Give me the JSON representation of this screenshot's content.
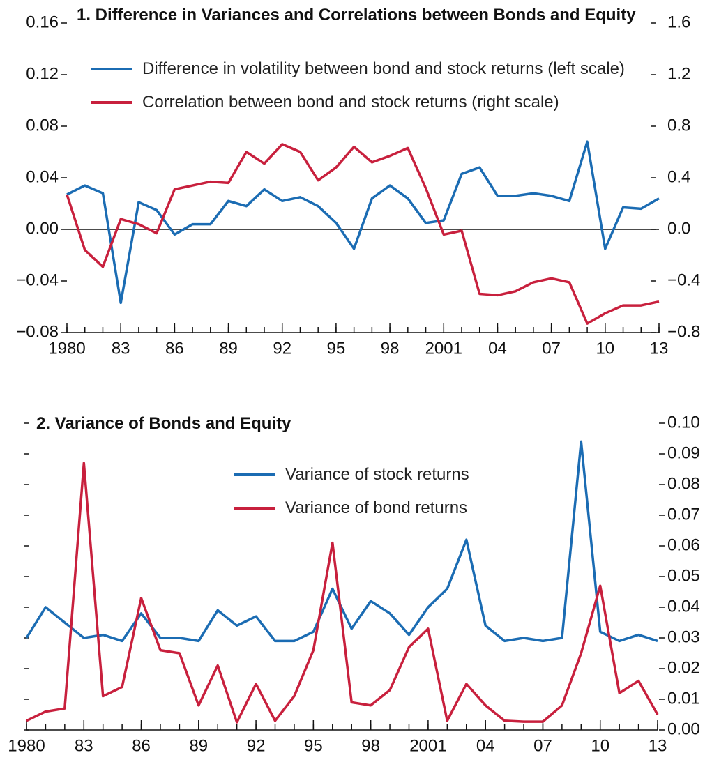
{
  "chart_data": [
    {
      "type": "line",
      "title": "1. Difference in Variances and Correlations between Bonds and Equity",
      "x": [
        1980,
        1981,
        1982,
        1983,
        1984,
        1985,
        1986,
        1987,
        1988,
        1989,
        1990,
        1991,
        1992,
        1993,
        1994,
        1995,
        1996,
        1997,
        1998,
        1999,
        2000,
        2001,
        2002,
        2003,
        2004,
        2005,
        2006,
        2007,
        2008,
        2009,
        2010,
        2011,
        2012,
        2013
      ],
      "series": [
        {
          "name": "Difference in volatility between bond and stock returns (left scale)",
          "color": "#1b6cb3",
          "axis": "y",
          "values": [
            0.027,
            0.034,
            0.028,
            -0.057,
            0.021,
            0.015,
            -0.004,
            0.004,
            0.004,
            0.022,
            0.018,
            0.031,
            0.022,
            0.025,
            0.018,
            0.005,
            -0.015,
            0.024,
            0.034,
            0.024,
            0.005,
            0.007,
            0.043,
            0.048,
            0.026,
            0.026,
            0.028,
            0.026,
            0.022,
            0.068,
            -0.015,
            0.017,
            0.016,
            0.024
          ]
        },
        {
          "name": "Correlation between bond and stock returns (right scale)",
          "color": "#c8203d",
          "axis": "y2",
          "values": [
            0.27,
            -0.16,
            -0.29,
            0.08,
            0.04,
            -0.03,
            0.31,
            0.34,
            0.37,
            0.36,
            0.6,
            0.51,
            0.66,
            0.6,
            0.38,
            0.48,
            0.64,
            0.52,
            0.57,
            0.63,
            0.32,
            -0.04,
            -0.01,
            -0.5,
            -0.51,
            -0.48,
            -0.41,
            -0.38,
            -0.41,
            -0.73,
            -0.65,
            -0.59,
            -0.59,
            -0.56
          ]
        }
      ],
      "xlim": [
        1980,
        2013
      ],
      "xticks": [
        1980,
        {
          "value": 1983,
          "label": "83"
        },
        {
          "value": 1986,
          "label": "86"
        },
        {
          "value": 1989,
          "label": "89"
        },
        {
          "value": 1992,
          "label": "92"
        },
        {
          "value": 1995,
          "label": "95"
        },
        {
          "value": 1998,
          "label": "98"
        },
        2001,
        {
          "value": 2004,
          "label": "04"
        },
        {
          "value": 2007,
          "label": "07"
        },
        {
          "value": 2010,
          "label": "10"
        },
        {
          "value": 2013,
          "label": "13"
        }
      ],
      "ylim": [
        -0.08,
        0.16
      ],
      "yticks": [
        {
          "value": -0.08,
          "label": "−0.08"
        },
        {
          "value": -0.04,
          "label": "−0.04"
        },
        {
          "value": 0,
          "label": "0.00"
        },
        0.04,
        0.08,
        0.12,
        0.16
      ],
      "y2lim": [
        -0.8,
        1.6
      ],
      "y2ticks": [
        {
          "value": -0.8,
          "label": "−0.8"
        },
        {
          "value": -0.4,
          "label": "−0.4"
        },
        {
          "value": 0,
          "label": "0.0"
        },
        0.4,
        0.8,
        1.2,
        1.6
      ],
      "legend": "upper left"
    },
    {
      "type": "line",
      "title": "2. Variance of Bonds and Equity",
      "x": [
        1980,
        1981,
        1982,
        1983,
        1984,
        1985,
        1986,
        1987,
        1988,
        1989,
        1990,
        1991,
        1992,
        1993,
        1994,
        1995,
        1996,
        1997,
        1998,
        1999,
        2000,
        2001,
        2002,
        2003,
        2004,
        2005,
        2006,
        2007,
        2008,
        2009,
        2010,
        2011,
        2012,
        2013
      ],
      "series": [
        {
          "name": "Variance of stock returns",
          "color": "#1b6cb3",
          "values": [
            0.03,
            0.04,
            0.035,
            0.03,
            0.031,
            0.029,
            0.038,
            0.03,
            0.03,
            0.029,
            0.039,
            0.034,
            0.037,
            0.029,
            0.029,
            0.032,
            0.046,
            0.033,
            0.042,
            0.038,
            0.031,
            0.04,
            0.046,
            0.062,
            0.034,
            0.029,
            0.03,
            0.029,
            0.03,
            0.094,
            0.032,
            0.029,
            0.031,
            0.029
          ]
        },
        {
          "name": "Variance of bond returns",
          "color": "#c8203d",
          "values": [
            0.003,
            0.006,
            0.007,
            0.087,
            0.011,
            0.014,
            0.043,
            0.026,
            0.025,
            0.008,
            0.021,
            0.0025,
            0.015,
            0.003,
            0.011,
            0.026,
            0.061,
            0.009,
            0.008,
            0.013,
            0.027,
            0.033,
            0.003,
            0.015,
            0.008,
            0.003,
            0.0027,
            0.0027,
            0.008,
            0.025,
            0.047,
            0.012,
            0.016,
            0.005
          ]
        }
      ],
      "xlim": [
        1980,
        2013
      ],
      "xticks": [
        1980,
        {
          "value": 1983,
          "label": "83"
        },
        {
          "value": 1986,
          "label": "86"
        },
        {
          "value": 1989,
          "label": "89"
        },
        {
          "value": 1992,
          "label": "92"
        },
        {
          "value": 1995,
          "label": "95"
        },
        {
          "value": 1998,
          "label": "98"
        },
        2001,
        {
          "value": 2004,
          "label": "04"
        },
        {
          "value": 2007,
          "label": "07"
        },
        {
          "value": 2010,
          "label": "10"
        },
        {
          "value": 2013,
          "label": "13"
        }
      ],
      "ylim": [
        0,
        0.1
      ],
      "yticks": [
        {
          "value": 0,
          "label": "0.00"
        },
        0.01,
        0.02,
        0.03,
        0.04,
        0.05,
        0.06,
        0.07,
        0.08,
        0.09,
        {
          "value": 0.1,
          "label": "0.10"
        }
      ],
      "yaxis_side": "right",
      "legend": "upper center"
    }
  ]
}
